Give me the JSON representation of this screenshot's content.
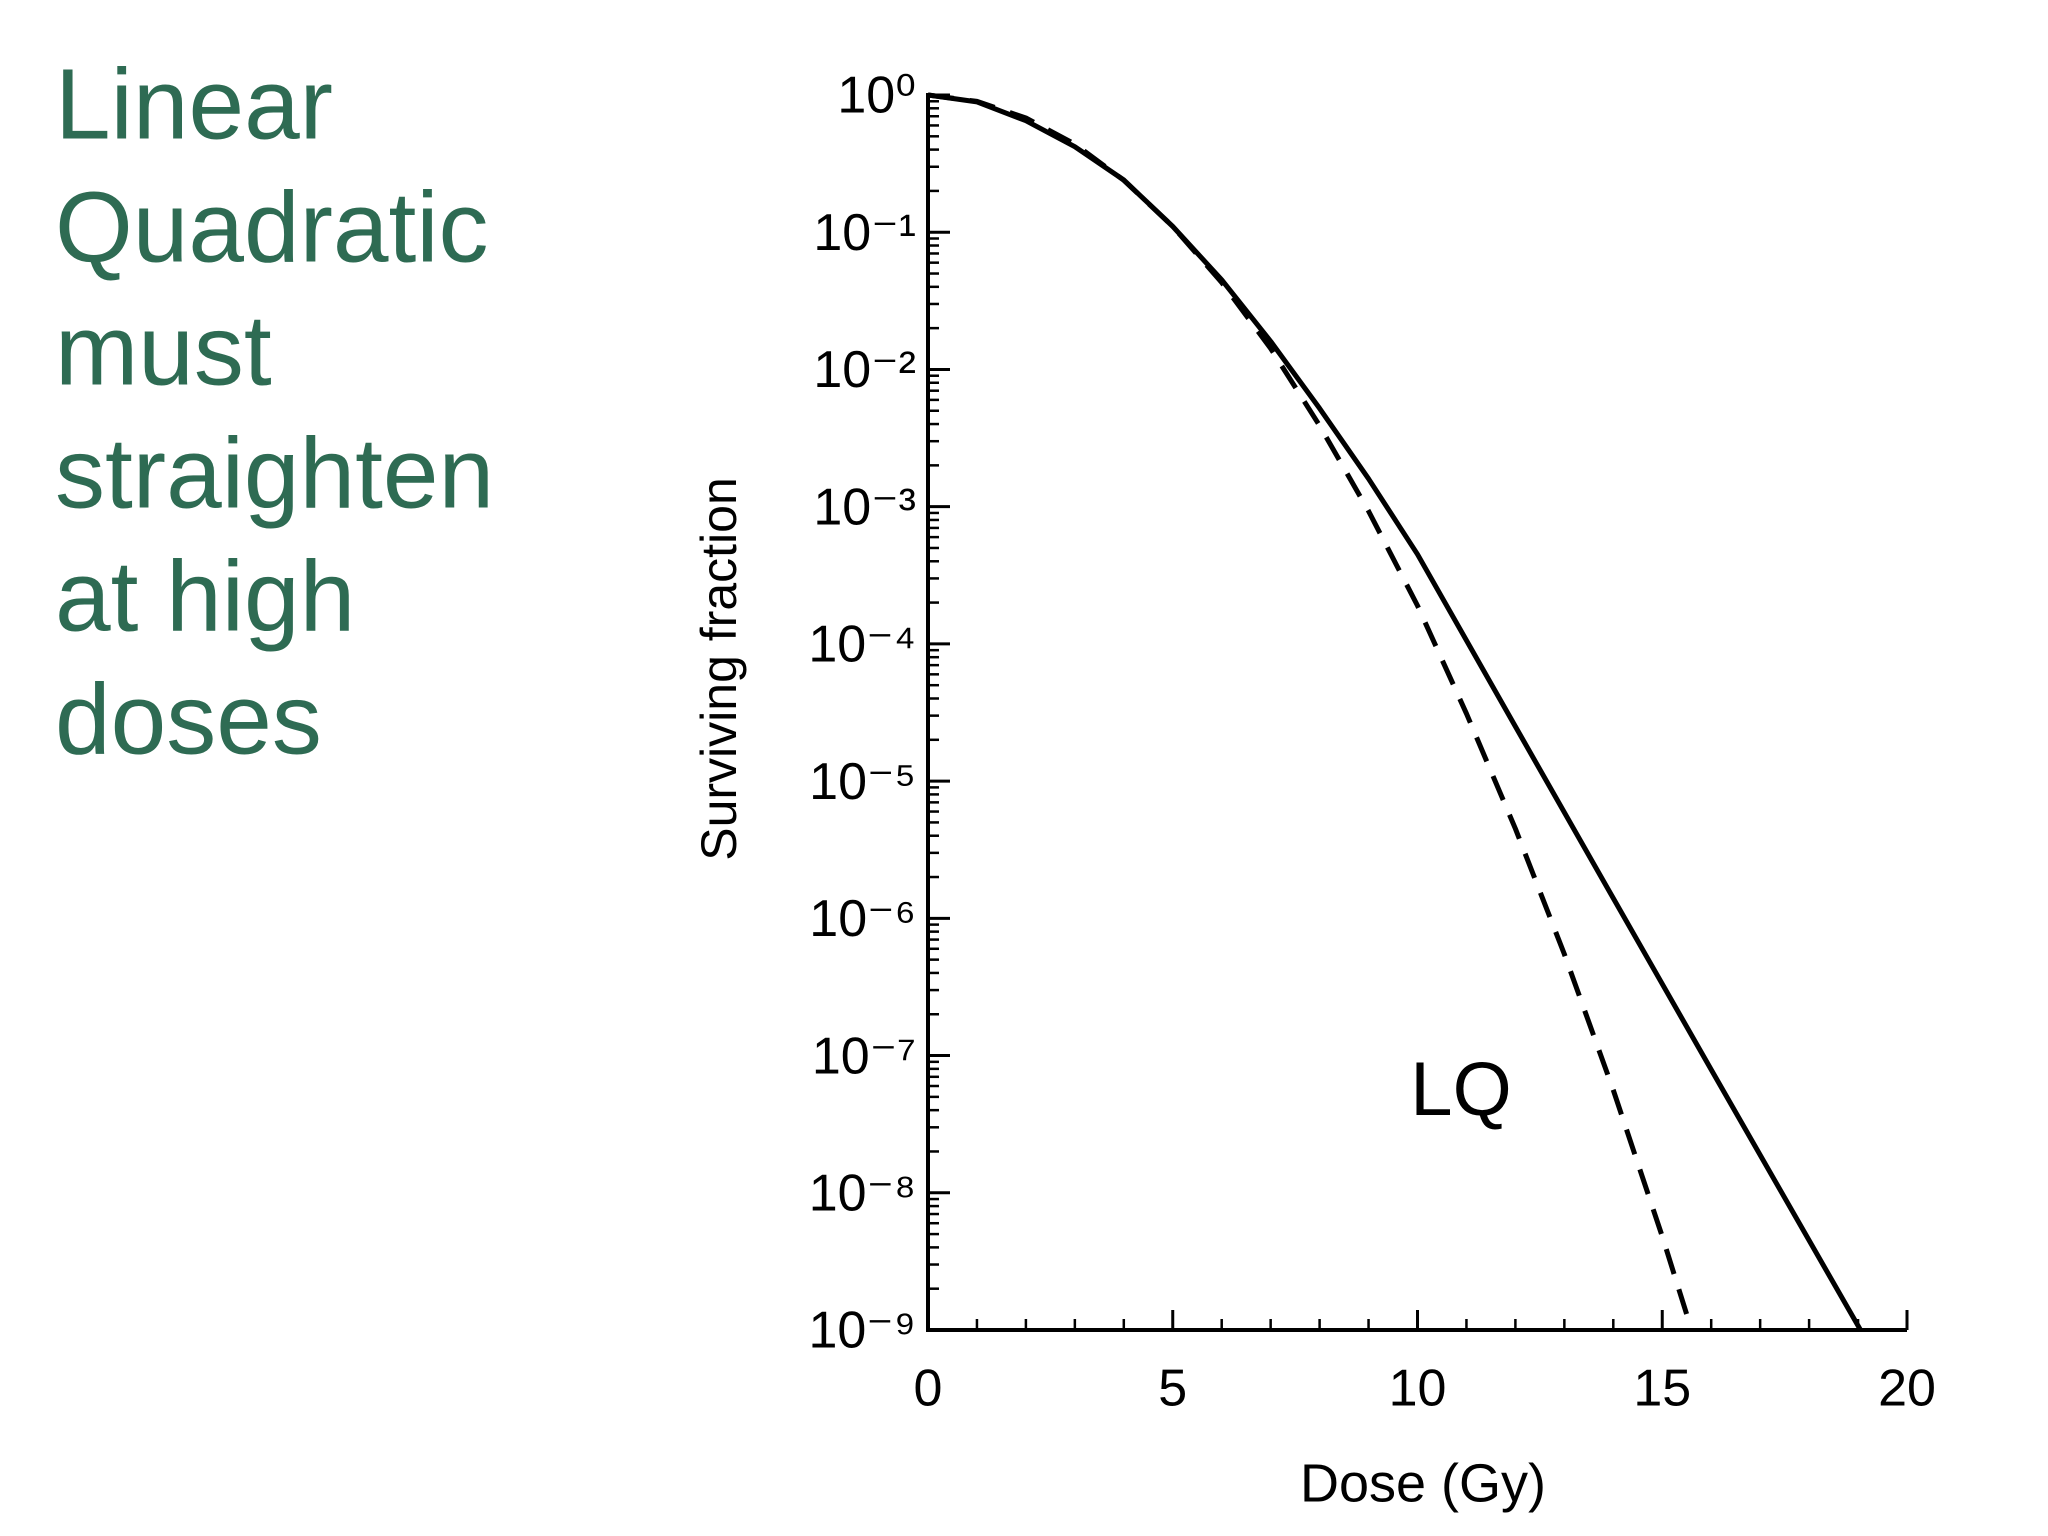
{
  "heading_lines": [
    "Linear",
    "Quadratic",
    "must",
    "straighten",
    "at high",
    "doses"
  ],
  "chart_data": {
    "type": "line",
    "xlabel": "Dose  (Gy)",
    "ylabel": "Surviving fraction",
    "annotation": "LQ",
    "ylog": true,
    "xlim": [
      0,
      20
    ],
    "ylim": [
      1e-09,
      1
    ],
    "xticks": [
      0,
      5,
      10,
      15,
      20
    ],
    "yticks": [
      {
        "value": 1,
        "label": "10⁰"
      },
      {
        "value": 0.1,
        "label": "10⁻¹"
      },
      {
        "value": 0.01,
        "label": "10⁻²"
      },
      {
        "value": 0.001,
        "label": "10⁻³"
      },
      {
        "value": 0.0001,
        "label": "10⁻⁴"
      },
      {
        "value": 1e-05,
        "label": "10⁻⁵"
      },
      {
        "value": 1e-06,
        "label": "10⁻⁶"
      },
      {
        "value": 1e-07,
        "label": "10⁻⁷"
      },
      {
        "value": 1e-08,
        "label": "10⁻⁸"
      },
      {
        "value": 1e-09,
        "label": "10⁻⁹"
      }
    ],
    "series": [
      {
        "color": "#000000",
        "dashed": false,
        "x": [
          0,
          1,
          2,
          3,
          4,
          5,
          6,
          7,
          8,
          9,
          10,
          12,
          14,
          16,
          18,
          19.05
        ],
        "values": [
          1,
          0.89,
          0.65,
          0.42,
          0.24,
          0.11,
          0.045,
          0.016,
          0.0052,
          0.0016,
          0.00045,
          2.5e-05,
          1.4e-06,
          7.9e-08,
          4.5e-09,
          1e-09
        ]
      },
      {
        "color": "#000000",
        "dashed": true,
        "x": [
          0,
          1,
          2,
          3,
          4,
          5,
          6,
          7,
          8,
          9,
          10,
          11,
          12,
          13,
          14,
          15,
          15.6
        ],
        "values": [
          1,
          0.898,
          0.68,
          0.439,
          0.239,
          0.11,
          0.043,
          0.0142,
          0.0039,
          0.00093,
          0.00019,
          3.1e-05,
          4.5e-06,
          5.5e-07,
          5.6e-08,
          4.8e-09,
          1e-09
        ]
      }
    ]
  }
}
